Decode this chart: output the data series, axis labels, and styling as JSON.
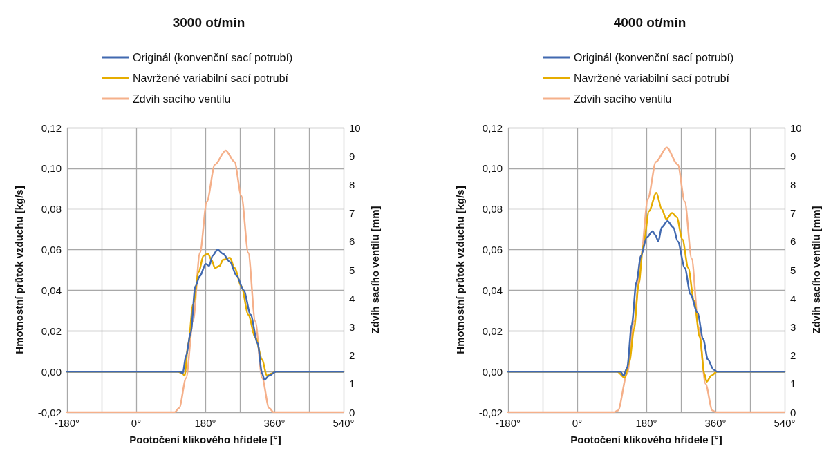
{
  "chart_data": [
    {
      "type": "line",
      "title": "3000 ot/min",
      "xlabel": "Pootočení klikového hřídele [°]",
      "ylabel": "Hmotnostní průtok vzduchu [kg/s]",
      "y2label": "Zdvih sacího ventilu [mm]",
      "legend": "top",
      "marker": "none",
      "line_style": "solid",
      "grid": true,
      "xlim": [
        -180,
        540
      ],
      "xticks": [
        {
          "value": -180,
          "label": "-180°"
        },
        {
          "value": -90,
          "label": null
        },
        {
          "value": 0,
          "label": "0°"
        },
        {
          "value": 90,
          "label": null
        },
        {
          "value": 180,
          "label": "180°"
        },
        {
          "value": 270,
          "label": null
        },
        {
          "value": 360,
          "label": "360°"
        },
        {
          "value": 450,
          "label": null
        },
        {
          "value": 540,
          "label": "540°"
        }
      ],
      "ylim": [
        -0.02,
        0.12
      ],
      "yticks": [
        {
          "value": -0.02,
          "label": "-0,02"
        },
        {
          "value": 0,
          "label": "0,00"
        },
        {
          "value": 0.02,
          "label": "0,02"
        },
        {
          "value": 0.04,
          "label": "0,04"
        },
        {
          "value": 0.06,
          "label": "0,06"
        },
        {
          "value": 0.08,
          "label": "0,08"
        },
        {
          "value": 0.1,
          "label": "0,10"
        },
        {
          "value": 0.12,
          "label": "0,12"
        }
      ],
      "y2lim": [
        0,
        10
      ],
      "y2ticks": [
        0,
        1,
        2,
        3,
        4,
        5,
        6,
        7,
        8,
        9,
        10
      ],
      "series": [
        {
          "name": "Originál (konvenční sací potrubí)",
          "color": "#4169b0",
          "x": [
            -180,
            100,
            115,
            121,
            130,
            142,
            154,
            166,
            181,
            190,
            199,
            212,
            226,
            244,
            262,
            280,
            298,
            316,
            328,
            334,
            346,
            364,
            540
          ],
          "values": [
            0,
            0,
            0,
            -0.001,
            0.008,
            0.019,
            0.042,
            0.047,
            0.053,
            0.052,
            0.057,
            0.06,
            0.058,
            0.054,
            0.047,
            0.04,
            0.028,
            0.014,
            -0.001,
            -0.004,
            -0.002,
            0,
            0
          ]
        },
        {
          "name": "Navržené variabilní sací potrubí",
          "color": "#e6ad00",
          "x": [
            -180,
            109,
            121,
            126,
            136,
            148,
            163,
            175,
            187,
            196,
            205,
            217,
            226,
            244,
            256,
            274,
            292,
            310,
            328,
            340,
            352,
            364,
            540
          ],
          "values": [
            0,
            0,
            -0.001,
            -0.002,
            0.014,
            0.033,
            0.049,
            0.057,
            0.058,
            0.055,
            0.051,
            0.052,
            0.055,
            0.056,
            0.051,
            0.042,
            0.028,
            0.017,
            0.006,
            -0.002,
            -0.001,
            0,
            0
          ]
        },
        {
          "name": "Zdvih sacího ventilu",
          "color": "#f5b08a",
          "axis": "y2",
          "x": [
            -180,
            100,
            112,
            130,
            148,
            166,
            184,
            205,
            233,
            256,
            274,
            292,
            310,
            328,
            346,
            358,
            540
          ],
          "values": [
            0,
            0,
            0.15,
            1.2,
            3.2,
            5.6,
            7.4,
            8.7,
            9.2,
            8.8,
            7.6,
            5.6,
            3.2,
            1.2,
            0.15,
            0,
            0
          ]
        }
      ]
    },
    {
      "type": "line",
      "title": "4000 ot/min",
      "xlabel": "Pootočení klikového hřídele [°]",
      "ylabel": "Hmotnostní průtok vzduchu [kg/s]",
      "y2label": "Zdvih sacího ventilu [mm]",
      "legend": "top",
      "marker": "none",
      "line_style": "solid",
      "grid": true,
      "xlim": [
        -180,
        540
      ],
      "xticks": [
        {
          "value": -180,
          "label": "-180°"
        },
        {
          "value": -90,
          "label": null
        },
        {
          "value": 0,
          "label": "0°"
        },
        {
          "value": 90,
          "label": null
        },
        {
          "value": 180,
          "label": "180°"
        },
        {
          "value": 270,
          "label": null
        },
        {
          "value": 360,
          "label": "360°"
        },
        {
          "value": 450,
          "label": null
        },
        {
          "value": 540,
          "label": "540°"
        }
      ],
      "ylim": [
        -0.02,
        0.12
      ],
      "yticks": [
        {
          "value": -0.02,
          "label": "-0,02"
        },
        {
          "value": 0,
          "label": "0,00"
        },
        {
          "value": 0.02,
          "label": "0,02"
        },
        {
          "value": 0.04,
          "label": "0,04"
        },
        {
          "value": 0.06,
          "label": "0,06"
        },
        {
          "value": 0.08,
          "label": "0,08"
        },
        {
          "value": 0.1,
          "label": "0,10"
        },
        {
          "value": 0.12,
          "label": "0,12"
        }
      ],
      "y2lim": [
        0,
        10
      ],
      "y2ticks": [
        0,
        1,
        2,
        3,
        4,
        5,
        6,
        7,
        8,
        9,
        10
      ],
      "series": [
        {
          "name": "Originál (konvenční sací potrubí)",
          "color": "#4169b0",
          "x": [
            -180,
            112,
            121,
            130,
            142,
            154,
            166,
            181,
            196,
            204,
            211,
            220,
            235,
            250,
            262,
            280,
            295,
            313,
            328,
            340,
            355,
            364,
            540
          ],
          "values": [
            0,
            0,
            -0.002,
            0.002,
            0.023,
            0.044,
            0.057,
            0.066,
            0.069,
            0.067,
            0.064,
            0.071,
            0.074,
            0.071,
            0.064,
            0.051,
            0.038,
            0.029,
            0.016,
            0.006,
            0.001,
            0,
            0
          ]
        },
        {
          "name": "Navržené variabilní sací potrubí",
          "color": "#e6ad00",
          "x": [
            -180,
            104,
            124,
            136,
            148,
            160,
            172,
            187,
            206,
            220,
            232,
            247,
            259,
            274,
            289,
            304,
            319,
            331,
            337,
            349,
            364,
            540
          ],
          "values": [
            0,
            0,
            -0.003,
            0.005,
            0.021,
            0.043,
            0.062,
            0.079,
            0.088,
            0.08,
            0.075,
            0.078,
            0.076,
            0.065,
            0.051,
            0.035,
            0.017,
            -0.001,
            -0.005,
            -0.002,
            0,
            0
          ]
        },
        {
          "name": "Zdvih sacího ventilu",
          "color": "#f5b08a",
          "axis": "y2",
          "x": [
            -180,
            96,
            106,
            130,
            148,
            166,
            184,
            205,
            233,
            262,
            280,
            298,
            316,
            334,
            352,
            361,
            540
          ],
          "values": [
            0,
            0,
            0.06,
            1.35,
            3.2,
            5.5,
            7.5,
            8.8,
            9.3,
            8.7,
            7.4,
            5.4,
            3,
            1,
            0.06,
            0,
            0
          ]
        }
      ]
    }
  ]
}
